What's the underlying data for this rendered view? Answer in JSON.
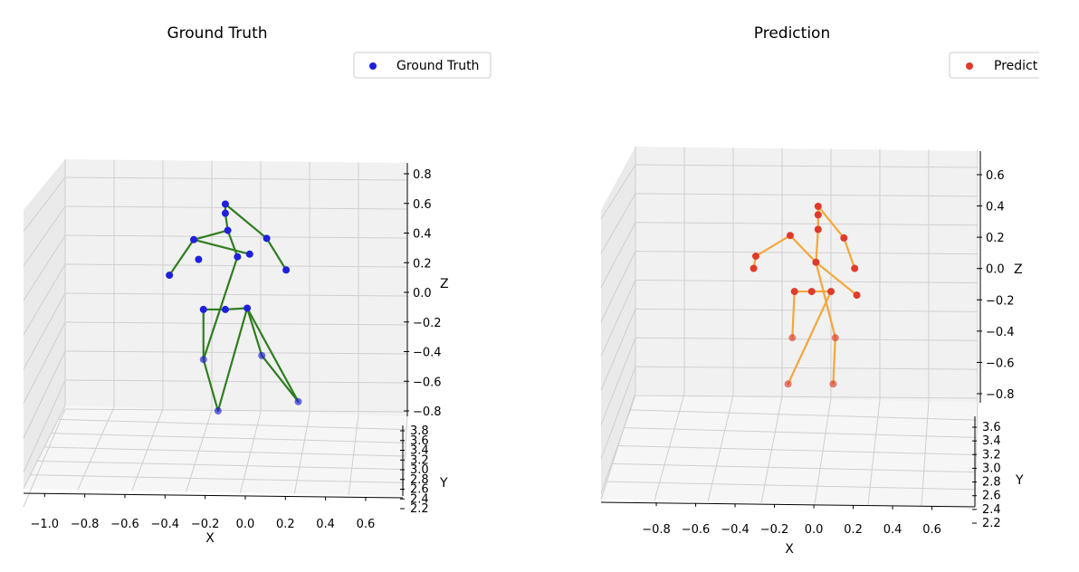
{
  "colors": {
    "gt_point": "#1f1fdc",
    "gt_bone": "#2e7d1f",
    "pred_point": "#e03a2a",
    "pred_bone": "#f5a63a",
    "grid": "#cfcfcf",
    "pane": "#f1f1f1"
  },
  "chart_data": [
    {
      "type": "scatter",
      "projection": "3d",
      "title": "Ground Truth",
      "xlabel": "X",
      "ylabel": "Y",
      "zlabel": "Z",
      "legend": {
        "label": "Ground Truth",
        "placement": "top-right"
      },
      "grid": true,
      "x_ticks": [
        "−1.0",
        "−0.8",
        "−0.6",
        "−0.4",
        "−0.2",
        "0.0",
        "0.2",
        "0.4",
        "0.6"
      ],
      "z_ticks": [
        "0.8",
        "0.6",
        "0.4",
        "0.2",
        "0.0",
        "−0.2",
        "−0.4",
        "−0.6",
        "−0.8"
      ],
      "y_ticks": [
        "3.8",
        "3.6",
        "3.4",
        "3.2",
        "3.0",
        "2.8",
        "2.6",
        "2.4",
        "2.2"
      ],
      "xlim": [
        -1.0,
        0.65
      ],
      "zlim": [
        -0.9,
        0.9
      ],
      "ylim": [
        2.2,
        3.9
      ],
      "points": [
        {
          "x": -0.15,
          "z": 0.62
        },
        {
          "x": -0.15,
          "z": 0.55
        },
        {
          "x": -0.14,
          "z": 0.42
        },
        {
          "x": -0.1,
          "z": 0.22
        },
        {
          "x": -0.28,
          "z": 0.35
        },
        {
          "x": -0.38,
          "z": 0.08
        },
        {
          "x": -0.26,
          "z": 0.2
        },
        {
          "x": 0.02,
          "z": 0.36
        },
        {
          "x": 0.1,
          "z": 0.12
        },
        {
          "x": -0.05,
          "z": 0.24
        },
        {
          "x": -0.24,
          "z": -0.18
        },
        {
          "x": -0.15,
          "z": -0.18
        },
        {
          "x": -0.06,
          "z": -0.17
        },
        {
          "x": -0.24,
          "z": -0.56
        },
        {
          "x": 0.0,
          "z": -0.53
        },
        {
          "x": -0.18,
          "z": -0.95
        },
        {
          "x": 0.15,
          "z": -0.88
        }
      ],
      "bones": [
        [
          0,
          1
        ],
        [
          1,
          2
        ],
        [
          2,
          3
        ],
        [
          0,
          7
        ],
        [
          2,
          4
        ],
        [
          4,
          5
        ],
        [
          4,
          9
        ],
        [
          7,
          8
        ],
        [
          3,
          13
        ],
        [
          10,
          11
        ],
        [
          11,
          12
        ],
        [
          10,
          13
        ],
        [
          13,
          15
        ],
        [
          12,
          16
        ],
        [
          12,
          14
        ],
        [
          14,
          16
        ],
        [
          12,
          15
        ]
      ]
    },
    {
      "type": "scatter",
      "projection": "3d",
      "title": "Prediction",
      "xlabel": "X",
      "ylabel": "Y",
      "zlabel": "Z",
      "legend": {
        "label": "Predict",
        "placement": "top-right"
      },
      "grid": true,
      "x_ticks": [
        "−0.8",
        "−0.6",
        "−0.4",
        "−0.2",
        "0.0",
        "0.2",
        "0.4",
        "0.6"
      ],
      "z_ticks": [
        "0.6",
        "0.4",
        "0.2",
        "0.0",
        "−0.2",
        "−0.4",
        "−0.6",
        "−0.8"
      ],
      "y_ticks": [
        "3.6",
        "3.4",
        "3.2",
        "3.0",
        "2.8",
        "2.6",
        "2.4",
        "2.2"
      ],
      "xlim": [
        -0.9,
        0.65
      ],
      "zlim": [
        -0.9,
        0.7
      ],
      "ylim": [
        2.2,
        3.7
      ],
      "points": [
        {
          "x": -0.05,
          "z": 0.46
        },
        {
          "x": -0.05,
          "z": 0.39
        },
        {
          "x": -0.05,
          "z": 0.27
        },
        {
          "x": -0.06,
          "z": 0.0
        },
        {
          "x": -0.18,
          "z": 0.22
        },
        {
          "x": -0.34,
          "z": 0.05
        },
        {
          "x": -0.35,
          "z": -0.05
        },
        {
          "x": 0.07,
          "z": 0.2
        },
        {
          "x": 0.12,
          "z": -0.05
        },
        {
          "x": 0.13,
          "z": -0.27
        },
        {
          "x": -0.16,
          "z": -0.24
        },
        {
          "x": -0.08,
          "z": -0.24
        },
        {
          "x": 0.01,
          "z": -0.24
        },
        {
          "x": -0.17,
          "z": -0.62
        },
        {
          "x": 0.03,
          "z": -0.62
        },
        {
          "x": -0.19,
          "z": -1.0
        },
        {
          "x": 0.02,
          "z": -1.0
        }
      ],
      "bones": [
        [
          0,
          1
        ],
        [
          1,
          2
        ],
        [
          2,
          3
        ],
        [
          0,
          7
        ],
        [
          7,
          8
        ],
        [
          3,
          4
        ],
        [
          4,
          5
        ],
        [
          5,
          6
        ],
        [
          3,
          9
        ],
        [
          3,
          14
        ],
        [
          14,
          16
        ],
        [
          10,
          11
        ],
        [
          11,
          12
        ],
        [
          10,
          13
        ],
        [
          12,
          15
        ]
      ]
    }
  ]
}
